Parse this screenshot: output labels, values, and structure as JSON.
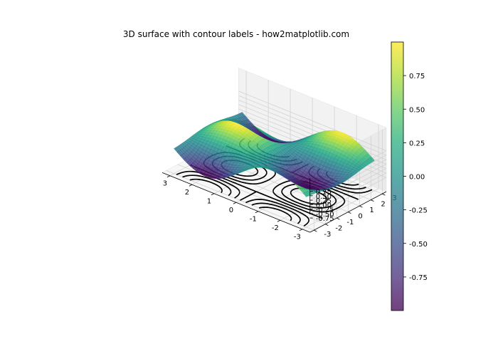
{
  "chart_data": {
    "type": "surface",
    "title": "3D surface with contour labels - how2matplotlib.com",
    "function": "sin(x) * cos(y)",
    "x_range": [
      -3,
      3
    ],
    "y_range": [
      -3,
      3
    ],
    "z_range": [
      -1,
      1
    ],
    "colormap": "viridis",
    "surface_alpha": 0.7,
    "x_ticks": [
      "-3",
      "-2",
      "-1",
      "0",
      "1",
      "2",
      "3"
    ],
    "y_ticks": [
      "-3",
      "-2",
      "-1",
      "0",
      "1",
      "2",
      "3"
    ],
    "z_ticks": [
      "-0.75",
      "-0.50",
      "-0.25",
      "0.00",
      "0.25",
      "0.50",
      "0.75"
    ],
    "contour_offset": "floor",
    "contour_levels": [
      -0.75,
      -0.5,
      -0.25,
      0,
      0.25,
      0.5,
      0.75
    ],
    "contour_color": "#000000",
    "negative_contours": "dashed",
    "colorbar": {
      "min": -1,
      "max": 1,
      "ticks": [
        "0.75",
        "0.50",
        "0.25",
        "0.00",
        "-0.25",
        "-0.50",
        "-0.75"
      ],
      "tick_values": [
        0.75,
        0.5,
        0.25,
        0,
        -0.25,
        -0.5,
        -0.75
      ]
    },
    "grid": true
  }
}
